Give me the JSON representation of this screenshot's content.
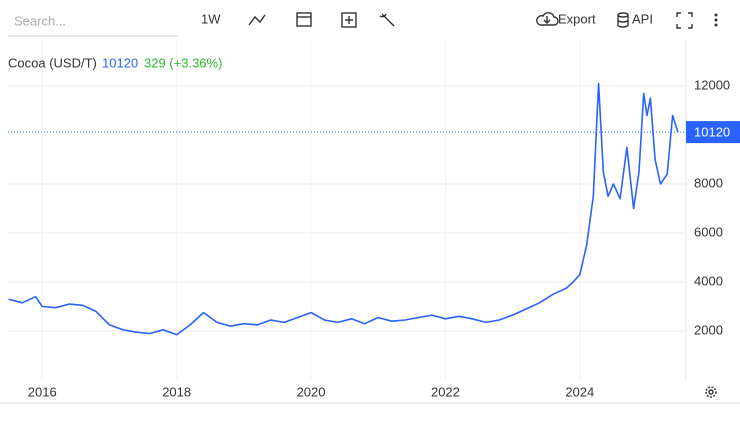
{
  "toolbar": {
    "search_placeholder": "Search...",
    "interval": "1W",
    "export": "Export",
    "api": "API"
  },
  "chart_data": {
    "type": "line",
    "title": "Cocoa (USD/T)",
    "change": "329 (+3.36%)",
    "x": [
      2015.5,
      2015.7,
      2015.9,
      2016.0,
      2016.2,
      2016.4,
      2016.6,
      2016.8,
      2017.0,
      2017.2,
      2017.4,
      2017.6,
      2017.8,
      2018.0,
      2018.2,
      2018.4,
      2018.6,
      2018.8,
      2019.0,
      2019.2,
      2019.4,
      2019.6,
      2019.8,
      2020.0,
      2020.2,
      2020.4,
      2020.6,
      2020.8,
      2021.0,
      2021.2,
      2021.4,
      2021.6,
      2021.8,
      2022.0,
      2022.2,
      2022.4,
      2022.6,
      2022.8,
      2023.0,
      2023.2,
      2023.4,
      2023.6,
      2023.8,
      2023.9,
      2024.0,
      2024.1,
      2024.2,
      2024.28,
      2024.35,
      2024.42,
      2024.5,
      2024.6,
      2024.7,
      2024.8,
      2024.88,
      2024.95,
      2025.0,
      2025.05,
      2025.12,
      2025.2,
      2025.3,
      2025.38,
      2025.46
    ],
    "series": [
      {
        "name": "Cocoa (USD/T)",
        "color": "#2962ff",
        "values": [
          3300,
          3150,
          3400,
          3000,
          2950,
          3100,
          3050,
          2800,
          2250,
          2050,
          1950,
          1900,
          2050,
          1850,
          2250,
          2750,
          2350,
          2200,
          2300,
          2250,
          2450,
          2350,
          2550,
          2750,
          2450,
          2350,
          2500,
          2300,
          2550,
          2400,
          2450,
          2550,
          2650,
          2500,
          2600,
          2500,
          2350,
          2450,
          2650,
          2900,
          3150,
          3500,
          3750,
          4000,
          4300,
          5500,
          7500,
          12100,
          8500,
          7500,
          8000,
          7400,
          9500,
          7000,
          8500,
          11700,
          10800,
          11500,
          9000,
          8000,
          8400,
          10800,
          10120
        ]
      }
    ],
    "xlim": [
      2015.49,
      2025.58
    ],
    "xticks": [
      2016,
      2018,
      2020,
      2022,
      2024
    ],
    "ylim": [
      0,
      13880
    ],
    "yticks": [
      2000,
      4000,
      6000,
      8000,
      12000
    ],
    "grid": true,
    "change_color": "#2eb82e"
  }
}
